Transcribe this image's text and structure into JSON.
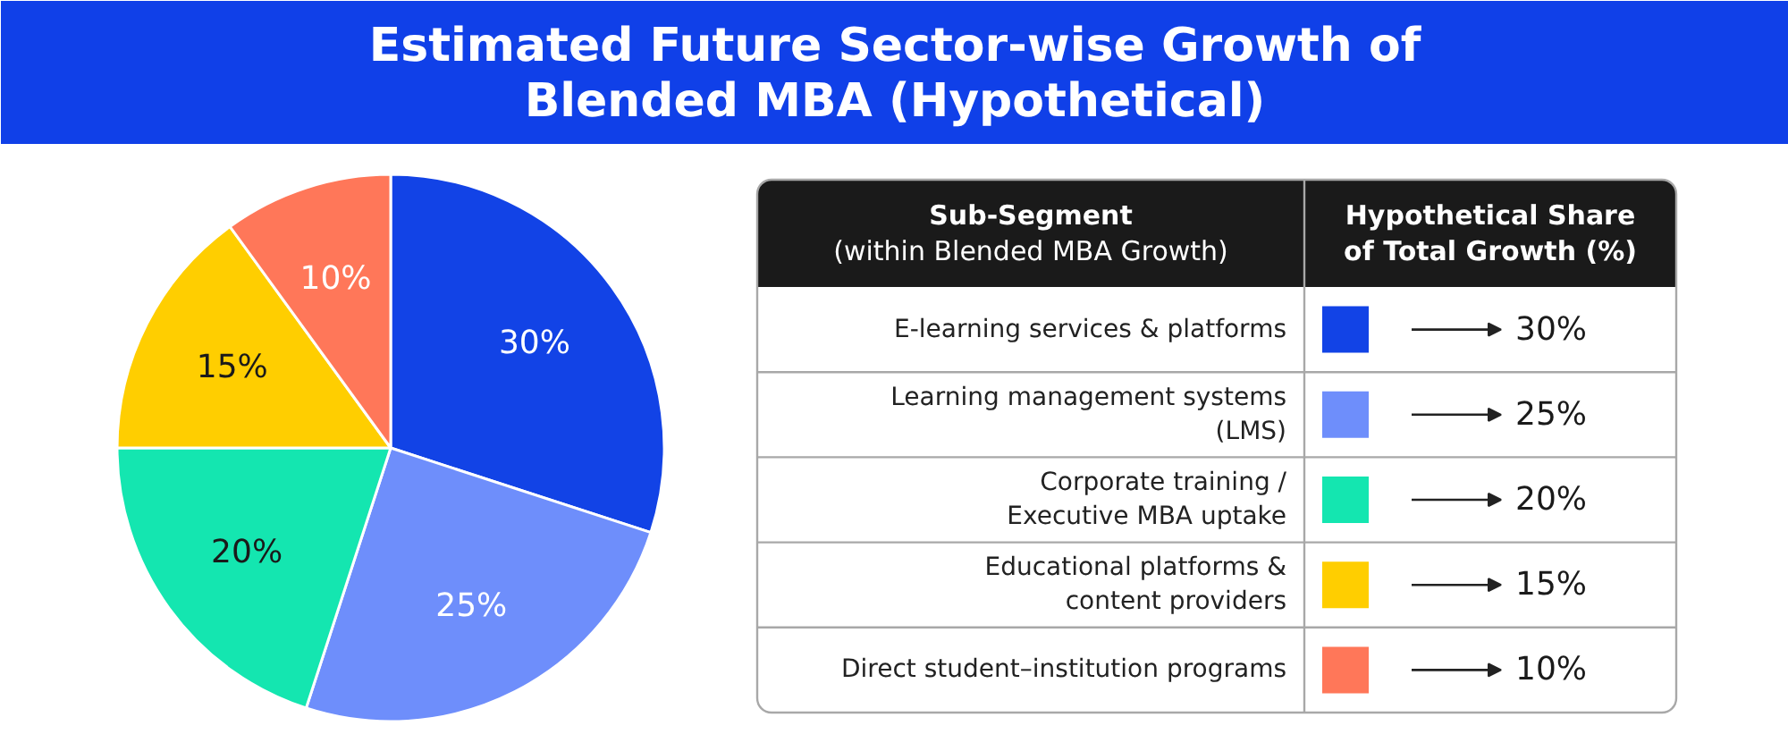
{
  "chart_data": {
    "type": "pie",
    "title": "Estimated Future Sector-wise Growth of\nBlended MBA (Hypothetical)",
    "categories": [
      "E-learning services & platforms",
      "Learning management systems\n(LMS)",
      "Corporate training /\nExecutive MBA uptake",
      "Educational platforms &\ncontent providers",
      "Direct student–institution programs"
    ],
    "values": [
      30,
      25,
      20,
      15,
      10
    ],
    "colors": [
      "#1243e6",
      "#6e8efb",
      "#14e6b0",
      "#ffce00",
      "#ff7759"
    ],
    "value_labels": [
      "30%",
      "25%",
      "20%",
      "15%",
      "10%"
    ],
    "legend": "right",
    "legend_title": "Sub-Segment\n(within Blended MBA Growth)",
    "annotations": [
      "Hypothetical Share\nof Total Growth (%)"
    ]
  }
}
